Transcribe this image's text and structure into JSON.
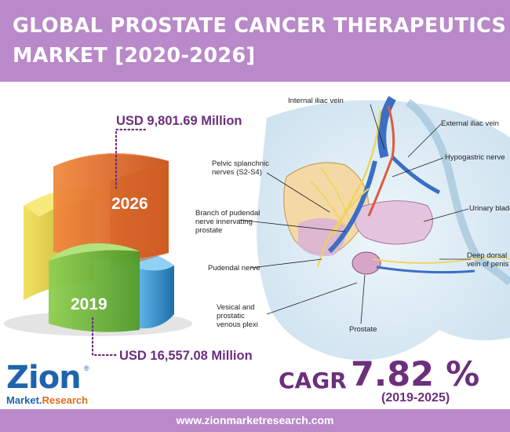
{
  "header": {
    "title_line1": "GLOBAL PROSTATE CANCER THERAPEUTICS",
    "title_line2": "MARKET [2020-2026]"
  },
  "colors": {
    "header_bg": "#b989c9",
    "accent_purple": "#6b2f7c",
    "bar_2026": "#e8692a",
    "bar_2019": "#7cc043",
    "bar_yellow": "#e6d43a",
    "bar_blue": "#3d9ad6",
    "brand_blue": "#1f63ad",
    "brand_orange": "#e46b1a"
  },
  "chart_data": {
    "type": "bar",
    "categories": [
      "2019",
      "2026"
    ],
    "values": [
      16557.08,
      9801.69
    ],
    "value_labels": [
      "USD 16,557.08 Million",
      "USD 9,801.69 Million"
    ],
    "unit": "USD Million",
    "title": "",
    "xlabel": "",
    "ylabel": "",
    "grid": false,
    "legend": "none"
  },
  "cagr": {
    "label": "CAGR",
    "value": "7.82 %",
    "period": "(2019-2025)"
  },
  "illustration": {
    "labels": [
      "Internal iliac vein",
      "External iliac vein",
      "Hypogastric nerve",
      "Pelvic splanchnic",
      "nerves (S2-S4)",
      "Branch of pudendal",
      "nerve innervating",
      "prostate",
      "Urinary bladd",
      "Pudendal nerve",
      "Deep dorsal",
      "vein of penis",
      "Vesical and",
      "prostatic",
      "venous plexi",
      "Prostate"
    ]
  },
  "logo": {
    "brand": "Zion",
    "sub_left": "Market.",
    "sub_right": "Research",
    "mark": "®"
  },
  "footer": {
    "url": "www.zionmarketresearch.com"
  }
}
